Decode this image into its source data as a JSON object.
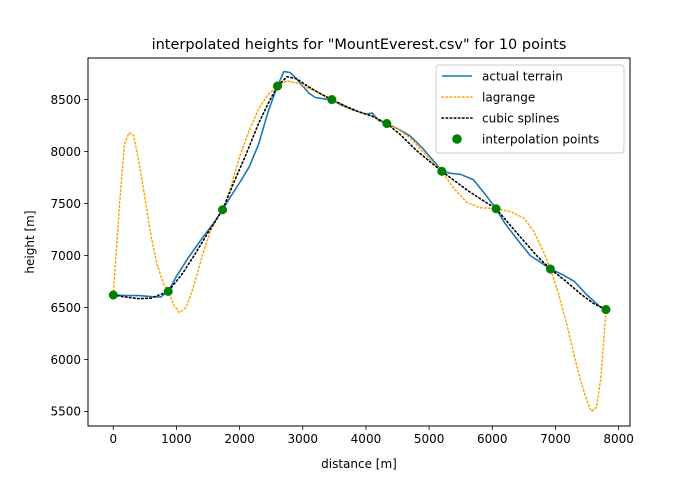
{
  "chart_data": {
    "type": "line",
    "title": "interpolated heights for \"MountEverest.csv\" for 10 points",
    "xlabel": "distance [m]",
    "ylabel": "height [m]",
    "xlim": [
      -400,
      8180
    ],
    "ylim": [
      5360,
      8900
    ],
    "xticks": [
      0,
      1000,
      2000,
      3000,
      4000,
      5000,
      6000,
      7000,
      8000
    ],
    "xtick_labels": [
      "0",
      "1000",
      "2000",
      "3000",
      "4000",
      "5000",
      "6000",
      "7000",
      "8000"
    ],
    "yticks": [
      5500,
      6000,
      6500,
      7000,
      7500,
      8000,
      8500
    ],
    "ytick_labels": [
      "5500",
      "6000",
      "6500",
      "7000",
      "7500",
      "8000",
      "8500"
    ],
    "grid": false,
    "legend_position": "top-right",
    "legend": [
      {
        "label": "actual terrain",
        "style": "solid-line",
        "color": "#1f77b4"
      },
      {
        "label": "lagrange",
        "style": "dotted-line",
        "color": "#ffa500"
      },
      {
        "label": "cubic splines",
        "style": "dotted-line",
        "color": "#000000"
      },
      {
        "label": "interpolation points",
        "style": "marker",
        "color": "#008000"
      }
    ],
    "series": [
      {
        "name": "actual terrain",
        "color": "#1f77b4",
        "x": [
          0,
          200,
          400,
          600,
          750,
          870,
          1000,
          1200,
          1400,
          1600,
          1730,
          1850,
          2000,
          2150,
          2300,
          2450,
          2550,
          2600,
          2700,
          2800,
          2900,
          3000,
          3100,
          3200,
          3300,
          3460,
          3600,
          3800,
          4000,
          4100,
          4200,
          4330,
          4500,
          4700,
          4900,
          5000,
          5100,
          5200,
          5350,
          5500,
          5700,
          5900,
          6060,
          6200,
          6400,
          6600,
          6800,
          6920,
          7100,
          7300,
          7500,
          7700,
          7800
        ],
        "y": [
          6620,
          6615,
          6615,
          6605,
          6600,
          6655,
          6800,
          6990,
          7160,
          7320,
          7440,
          7560,
          7700,
          7850,
          8070,
          8380,
          8550,
          8630,
          8770,
          8760,
          8700,
          8630,
          8560,
          8520,
          8510,
          8500,
          8450,
          8400,
          8360,
          8370,
          8300,
          8270,
          8220,
          8150,
          8030,
          7960,
          7890,
          7810,
          7790,
          7780,
          7730,
          7580,
          7450,
          7310,
          7150,
          7000,
          6920,
          6870,
          6820,
          6750,
          6620,
          6510,
          6480
        ]
      },
      {
        "name": "lagrange",
        "color": "#ffa500",
        "x": [
          0,
          100,
          180,
          250,
          320,
          400,
          500,
          600,
          700,
          800,
          870,
          950,
          1050,
          1150,
          1250,
          1350,
          1450,
          1550,
          1650,
          1730,
          1850,
          2000,
          2150,
          2300,
          2450,
          2600,
          2750,
          2900,
          3050,
          3200,
          3460,
          3700,
          3900,
          4100,
          4330,
          4500,
          4700,
          4900,
          5050,
          5200,
          5400,
          5600,
          5800,
          6060,
          6300,
          6500,
          6650,
          6800,
          6920,
          7050,
          7200,
          7300,
          7400,
          7500,
          7570,
          7650,
          7720,
          7760,
          7800
        ],
        "y": [
          6620,
          7500,
          8080,
          8180,
          8160,
          7920,
          7560,
          7180,
          6900,
          6720,
          6660,
          6530,
          6450,
          6500,
          6660,
          6870,
          7080,
          7250,
          7360,
          7440,
          7640,
          7950,
          8200,
          8410,
          8550,
          8630,
          8680,
          8660,
          8620,
          8580,
          8500,
          8430,
          8380,
          8340,
          8270,
          8220,
          8130,
          8000,
          7900,
          7810,
          7640,
          7510,
          7460,
          7450,
          7420,
          7360,
          7240,
          7050,
          6870,
          6630,
          6290,
          6030,
          5790,
          5600,
          5500,
          5540,
          5830,
          6150,
          6480
        ]
      },
      {
        "name": "cubic splines",
        "color": "#000000",
        "x": [
          0,
          200,
          400,
          600,
          870,
          1100,
          1300,
          1500,
          1730,
          1900,
          2100,
          2300,
          2450,
          2600,
          2750,
          2900,
          3100,
          3300,
          3460,
          3700,
          3900,
          4100,
          4330,
          4550,
          4800,
          5000,
          5200,
          5400,
          5600,
          5800,
          6060,
          6300,
          6500,
          6700,
          6920,
          7150,
          7400,
          7600,
          7800
        ],
        "y": [
          6620,
          6600,
          6585,
          6590,
          6655,
          6830,
          7020,
          7220,
          7440,
          7690,
          7970,
          8270,
          8460,
          8630,
          8720,
          8700,
          8620,
          8550,
          8500,
          8430,
          8380,
          8340,
          8270,
          8160,
          8010,
          7910,
          7810,
          7720,
          7630,
          7550,
          7450,
          7280,
          7140,
          7000,
          6870,
          6760,
          6630,
          6540,
          6480
        ]
      }
    ],
    "points": {
      "name": "interpolation points",
      "color": "#008000",
      "x": [
        0,
        870,
        1730,
        2600,
        3460,
        4330,
        5200,
        6060,
        6920,
        7800
      ],
      "y": [
        6620,
        6655,
        7440,
        8630,
        8500,
        8270,
        7810,
        7450,
        6870,
        6480
      ]
    }
  }
}
